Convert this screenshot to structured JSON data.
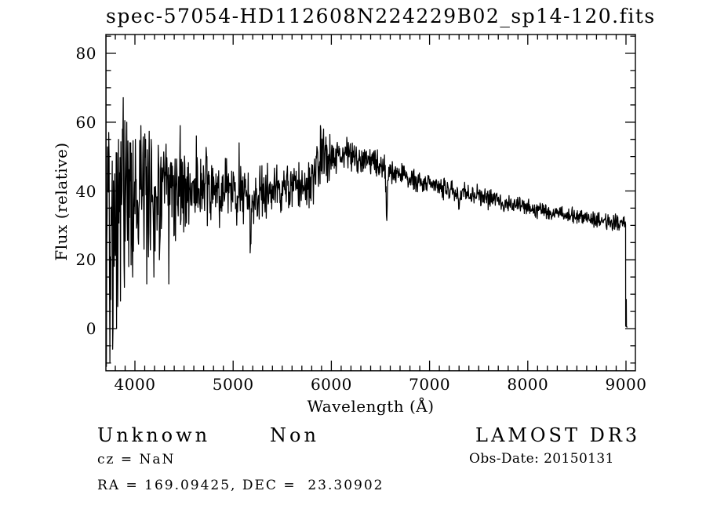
{
  "title": "spec-57054-HD112608N224229B02_sp14-120.fits",
  "annotations": {
    "class_label": "Unknown",
    "subclass_label": "Non",
    "cz_line": "cz = NaN",
    "radec_line": "RA = 169.09425, DEC =  23.30902",
    "survey": "LAMOST DR3",
    "obs_date_line": "Obs-Date: 20150131"
  },
  "chart_data": {
    "type": "line",
    "title": "spec-57054-HD112608N224229B02_sp14-120.fits",
    "xlabel": "Wavelength (Å)",
    "ylabel": "Flux (relative)",
    "x_ticks": [
      4000,
      5000,
      6000,
      7000,
      8000,
      9000
    ],
    "y_ticks": [
      0,
      20,
      40,
      60,
      80
    ],
    "x_minor_step": 100,
    "y_minor_step": 5,
    "xlim": [
      3705,
      9096
    ],
    "ylim": [
      -12.3,
      85.4
    ],
    "grid": false,
    "legend": "none",
    "line_color": "#000000",
    "background_color": "#ffffff",
    "noise_seed": 42,
    "continuum": [
      [
        3705,
        38
      ],
      [
        3760,
        36.5
      ],
      [
        3820,
        37.5
      ],
      [
        3880,
        38.5
      ],
      [
        3940,
        39.5
      ],
      [
        4000,
        40
      ],
      [
        4100,
        40
      ],
      [
        4200,
        39.5
      ],
      [
        4300,
        40
      ],
      [
        4400,
        40.5
      ],
      [
        4500,
        40
      ],
      [
        4600,
        40.5
      ],
      [
        4700,
        40
      ],
      [
        4800,
        39.5
      ],
      [
        4900,
        39.5
      ],
      [
        5000,
        39.5
      ],
      [
        5100,
        39
      ],
      [
        5200,
        38.5
      ],
      [
        5300,
        39
      ],
      [
        5400,
        40
      ],
      [
        5500,
        40.5
      ],
      [
        5600,
        41
      ],
      [
        5700,
        41
      ],
      [
        5800,
        42
      ],
      [
        5840,
        43.5
      ],
      [
        5880,
        48.5
      ],
      [
        5920,
        49.5
      ],
      [
        5960,
        50
      ],
      [
        6000,
        50
      ],
      [
        6060,
        50.8
      ],
      [
        6120,
        51
      ],
      [
        6180,
        50.5
      ],
      [
        6240,
        50
      ],
      [
        6300,
        49.5
      ],
      [
        6400,
        48.5
      ],
      [
        6500,
        47.2
      ],
      [
        6600,
        45.8
      ],
      [
        6700,
        44.8
      ],
      [
        6800,
        43.8
      ],
      [
        6900,
        43
      ],
      [
        7000,
        42.2
      ],
      [
        7100,
        41.2
      ],
      [
        7200,
        40.3
      ],
      [
        7300,
        39.8
      ],
      [
        7400,
        39.2
      ],
      [
        7500,
        38.8
      ],
      [
        7600,
        38.2
      ],
      [
        7700,
        37.2
      ],
      [
        7800,
        36.3
      ],
      [
        7900,
        35.7
      ],
      [
        8000,
        35
      ],
      [
        8100,
        34.6
      ],
      [
        8200,
        34.1
      ],
      [
        8300,
        33.6
      ],
      [
        8400,
        33.1
      ],
      [
        8500,
        32.6
      ],
      [
        8600,
        32.1
      ],
      [
        8700,
        31.7
      ],
      [
        8800,
        31.2
      ],
      [
        8900,
        30.8
      ],
      [
        8995,
        30.4
      ]
    ],
    "noise_halfwidth": [
      [
        3705,
        26
      ],
      [
        3760,
        23
      ],
      [
        3820,
        20
      ],
      [
        3880,
        18
      ],
      [
        3940,
        16
      ],
      [
        4000,
        14
      ],
      [
        4080,
        12.5
      ],
      [
        4160,
        11.5
      ],
      [
        4240,
        10.5
      ],
      [
        4320,
        10
      ],
      [
        4400,
        9.5
      ],
      [
        4500,
        8.5
      ],
      [
        4600,
        8
      ],
      [
        4700,
        7.5
      ],
      [
        4800,
        7
      ],
      [
        4900,
        6.5
      ],
      [
        5000,
        6
      ],
      [
        5100,
        6
      ],
      [
        5200,
        6
      ],
      [
        5300,
        5.5
      ],
      [
        5400,
        5
      ],
      [
        5500,
        4.8
      ],
      [
        5600,
        4.5
      ],
      [
        5700,
        4.3
      ],
      [
        5800,
        4.5
      ],
      [
        5860,
        5.5
      ],
      [
        5940,
        5
      ],
      [
        6000,
        4
      ],
      [
        6100,
        3.4
      ],
      [
        6200,
        3
      ],
      [
        6300,
        2.8
      ],
      [
        6400,
        2.6
      ],
      [
        6500,
        2.5
      ],
      [
        6600,
        2.4
      ],
      [
        6800,
        2.2
      ],
      [
        7000,
        2.1
      ],
      [
        7200,
        2
      ],
      [
        7400,
        1.9
      ],
      [
        7600,
        1.8
      ],
      [
        7800,
        1.7
      ],
      [
        8000,
        1.7
      ],
      [
        8300,
        1.6
      ],
      [
        8600,
        1.6
      ],
      [
        8995,
        1.5
      ]
    ],
    "absorption_dips": [
      {
        "center": 6563,
        "depth": 14,
        "sigma": 6
      },
      {
        "center": 6867,
        "depth": 3,
        "sigma": 6
      },
      {
        "center": 5180,
        "depth": 5,
        "sigma": 18
      },
      {
        "center": 7300,
        "depth": 3,
        "sigma": 8
      }
    ],
    "anchors": [
      [
        3705,
        86
      ],
      [
        3709,
        -11
      ],
      [
        3733,
        57
      ],
      [
        3745,
        -10
      ],
      [
        3761,
        30
      ],
      [
        3773,
        -6
      ],
      [
        3793,
        45
      ],
      [
        3813,
        0
      ],
      [
        3833,
        55
      ],
      [
        3853,
        8
      ],
      [
        3873,
        58
      ],
      [
        3893,
        12
      ],
      [
        3917,
        60
      ],
      [
        3937,
        18
      ],
      [
        3957,
        54
      ],
      [
        3977,
        15
      ],
      [
        4005,
        55
      ],
      [
        4061,
        59
      ],
      [
        4121,
        13
      ],
      [
        4165,
        55
      ],
      [
        4193,
        15
      ],
      [
        4249,
        20
      ],
      [
        4345,
        13
      ],
      [
        4461,
        59
      ],
      [
        4625,
        56
      ],
      [
        5061,
        54
      ],
      [
        5171,
        22
      ],
      [
        5889,
        59
      ],
      [
        5921,
        58
      ],
      [
        7597,
        34.5
      ]
    ],
    "tail": [
      [
        8996,
        30.2
      ],
      [
        8997,
        0.8
      ],
      [
        9001,
        0.6
      ],
      [
        9003,
        8.5
      ],
      [
        9005,
        0.5
      ],
      [
        9016,
        0.4
      ]
    ]
  }
}
